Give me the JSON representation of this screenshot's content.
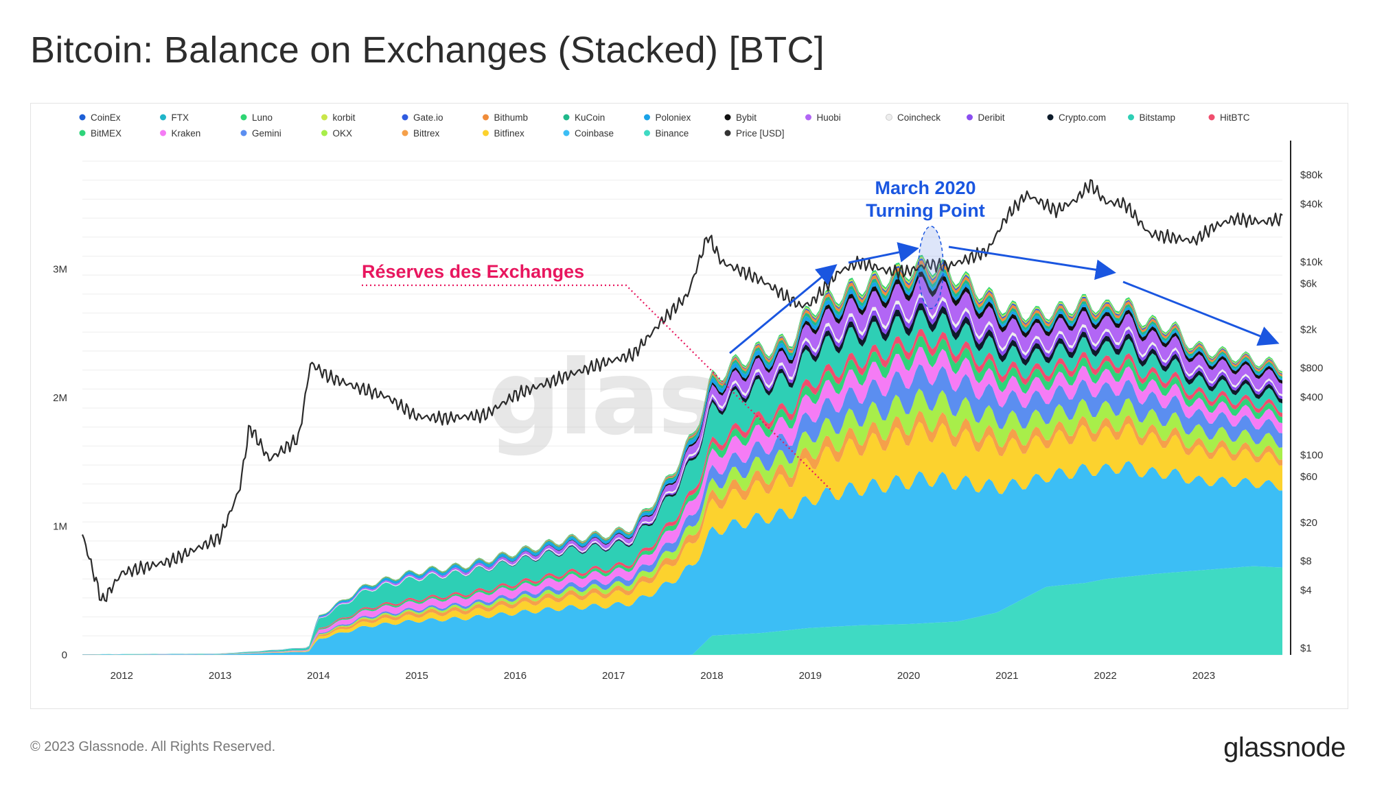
{
  "title": "Bitcoin: Balance on Exchanges (Stacked) [BTC]",
  "footer": {
    "copyright": "© 2023 Glassnode. All Rights Reserved.",
    "brand": "glassnode"
  },
  "watermark": "glassnode",
  "chart_data": {
    "type": "area",
    "stacked": true,
    "title": "Bitcoin: Balance on Exchanges (Stacked) [BTC]",
    "x_ticks": [
      "2012",
      "2013",
      "2014",
      "2015",
      "2016",
      "2017",
      "2018",
      "2019",
      "2020",
      "2021",
      "2022",
      "2023"
    ],
    "y_left": {
      "ticks": [
        "0",
        "1M",
        "2M",
        "3M"
      ],
      "tick_values": [
        0,
        1000000,
        2000000,
        3000000
      ],
      "range": [
        0,
        4000000
      ]
    },
    "y_right": {
      "scale": "log",
      "ticks": [
        "$1",
        "$4",
        "$8",
        "$20",
        "$60",
        "$100",
        "$400",
        "$800",
        "$2k",
        "$6k",
        "$10k",
        "$40k",
        "$80k"
      ],
      "tick_values": [
        1,
        4,
        8,
        20,
        60,
        100,
        400,
        800,
        2000,
        6000,
        10000,
        40000,
        80000
      ]
    },
    "legend": [
      {
        "name": "CoinEx",
        "color": "#1d5fd6"
      },
      {
        "name": "FTX",
        "color": "#1fb5c9"
      },
      {
        "name": "Luno",
        "color": "#2ed573"
      },
      {
        "name": "korbit",
        "color": "#c9e64a"
      },
      {
        "name": "Gate.io",
        "color": "#2f5be0"
      },
      {
        "name": "Bithumb",
        "color": "#f08c3a"
      },
      {
        "name": "KuCoin",
        "color": "#20b88a"
      },
      {
        "name": "Poloniex",
        "color": "#1aa3e8"
      },
      {
        "name": "Bybit",
        "color": "#111111"
      },
      {
        "name": "Huobi",
        "color": "#b266f5"
      },
      {
        "name": "Coincheck",
        "color": "#eeeeee"
      },
      {
        "name": "Deribit",
        "color": "#8a4ef0"
      },
      {
        "name": "Crypto.com",
        "color": "#0d1b2a"
      },
      {
        "name": "Bitstamp",
        "color": "#2ecfb5"
      },
      {
        "name": "HitBTC",
        "color": "#f04e6e"
      },
      {
        "name": "BitMEX",
        "color": "#2ed47a"
      },
      {
        "name": "Kraken",
        "color": "#f57cf5"
      },
      {
        "name": "Gemini",
        "color": "#5b8ef0"
      },
      {
        "name": "OKX",
        "color": "#a8ee4a"
      },
      {
        "name": "Bittrex",
        "color": "#f5a04a"
      },
      {
        "name": "Bitfinex",
        "color": "#fcd22e"
      },
      {
        "name": "Coinbase",
        "color": "#3cbef5"
      },
      {
        "name": "Binance",
        "color": "#3fdac3"
      },
      {
        "name": "Price [USD]",
        "color": "#333333"
      }
    ],
    "stack_order_bottom_to_top": [
      "Binance",
      "Coinbase",
      "Bitfinex",
      "Bittrex",
      "OKX",
      "Gemini",
      "Kraken",
      "BitMEX",
      "HitBTC",
      "Bitstamp",
      "Crypto.com",
      "Deribit",
      "Coincheck",
      "Huobi",
      "Bybit",
      "Poloniex",
      "KuCoin",
      "Bithumb",
      "Gate.io",
      "korbit",
      "Luno",
      "FTX",
      "CoinEx"
    ],
    "total_balance_series": {
      "x": [
        2011.6,
        2013.0,
        2013.4,
        2013.9,
        2014.0,
        2014.5,
        2015.0,
        2015.5,
        2016.0,
        2016.5,
        2017.0,
        2017.2,
        2017.5,
        2017.8,
        2018.0,
        2018.4,
        2018.8,
        2019.0,
        2019.4,
        2019.8,
        2020.0,
        2020.2,
        2020.5,
        2020.8,
        2021.0,
        2021.3,
        2021.6,
        2021.8,
        2022.0,
        2022.2,
        2022.4,
        2022.7,
        2022.9,
        2023.2,
        2023.5,
        2023.8
      ],
      "values": [
        5000,
        10000,
        30000,
        60000,
        300000,
        550000,
        650000,
        700000,
        800000,
        900000,
        950000,
        1000000,
        1300000,
        1700000,
        2150000,
        2350000,
        2450000,
        2700000,
        2850000,
        2950000,
        3000000,
        3050000,
        2950000,
        2800000,
        2700000,
        2650000,
        2700000,
        2750000,
        2700000,
        2750000,
        2600000,
        2550000,
        2400000,
        2350000,
        2300000,
        2250000
      ]
    },
    "binance_series": {
      "x": [
        2011.6,
        2017.8,
        2018.0,
        2018.5,
        2019.0,
        2019.5,
        2020.0,
        2020.5,
        2020.9,
        2021.2,
        2021.4,
        2021.8,
        2022.0,
        2022.5,
        2023.0,
        2023.5,
        2023.8
      ],
      "values": [
        0,
        0,
        150000,
        170000,
        210000,
        230000,
        240000,
        260000,
        330000,
        450000,
        530000,
        560000,
        590000,
        630000,
        660000,
        690000,
        680000
      ]
    },
    "price_series": {
      "x": [
        2011.6,
        2011.8,
        2012.0,
        2012.5,
        2013.0,
        2013.2,
        2013.3,
        2013.5,
        2013.8,
        2013.92,
        2014.1,
        2014.4,
        2014.7,
        2015.0,
        2015.3,
        2015.7,
        2016.0,
        2016.5,
        2016.9,
        2017.2,
        2017.5,
        2017.75,
        2017.96,
        2018.1,
        2018.5,
        2018.9,
        2019.0,
        2019.3,
        2019.5,
        2019.8,
        2020.0,
        2020.2,
        2020.4,
        2020.8,
        2021.0,
        2021.2,
        2021.5,
        2021.7,
        2021.85,
        2022.0,
        2022.2,
        2022.45,
        2022.9,
        2023.1,
        2023.3,
        2023.6,
        2023.8
      ],
      "values": [
        15,
        3,
        6,
        8,
        14,
        45,
        200,
        90,
        150,
        900,
        650,
        500,
        400,
        250,
        240,
        260,
        420,
        650,
        900,
        1100,
        2500,
        4500,
        19000,
        10000,
        6500,
        3500,
        3700,
        8000,
        10000,
        8000,
        8000,
        9500,
        9000,
        13000,
        30000,
        50000,
        34000,
        44000,
        65000,
        42000,
        40000,
        19500,
        16500,
        23000,
        28000,
        26000,
        28000
      ]
    },
    "annotations": [
      {
        "text": "Réserves des Exchanges",
        "color": "#e8165e"
      },
      {
        "text_lines": [
          "March 2020",
          "Turning Point"
        ],
        "color": "#1a56e0"
      }
    ],
    "grid": true,
    "legend_position": "top"
  }
}
